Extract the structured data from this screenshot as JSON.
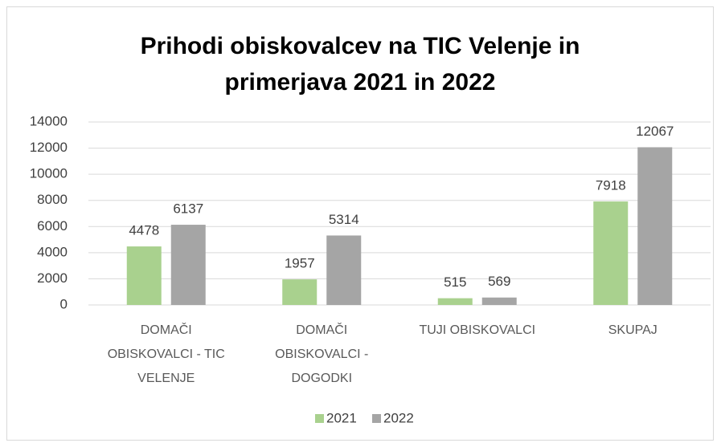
{
  "chart_data": {
    "type": "bar",
    "title": "Prihodi obiskovalcev na TIC Velenje in primerjava 2021 in 2022",
    "categories": [
      "DOMAČI OBISKOVALCI - TIC VELENJE",
      "DOMAČI OBISKOVALCI - DOGODKI",
      "TUJI OBISKOVALCI",
      "SKUPAJ"
    ],
    "series": [
      {
        "name": "2021",
        "color": "#a9d18e",
        "values": [
          4478,
          1957,
          515,
          7918
        ]
      },
      {
        "name": "2022",
        "color": "#a5a5a5",
        "values": [
          6137,
          5314,
          569,
          12067
        ]
      }
    ],
    "ylim": [
      0,
      14000
    ],
    "yticks": [
      0,
      2000,
      4000,
      6000,
      8000,
      10000,
      12000,
      14000
    ],
    "grid": true,
    "legend": "bottom"
  }
}
